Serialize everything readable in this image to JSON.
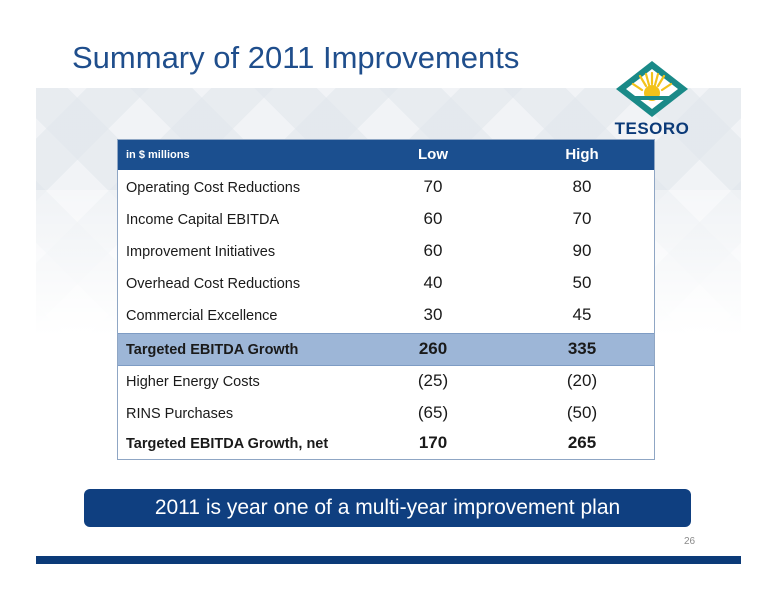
{
  "title": "Summary of 2011 Improvements",
  "logo_text": "TESORO",
  "table": {
    "unit_label": "in $ millions",
    "col_low": "Low",
    "col_high": "High",
    "rows": [
      {
        "label": "Operating Cost Reductions",
        "low": "70",
        "high": "80"
      },
      {
        "label": "Income Capital EBITDA",
        "low": "60",
        "high": "70"
      },
      {
        "label": "Improvement Initiatives",
        "low": "60",
        "high": "90"
      },
      {
        "label": "Overhead Cost Reductions",
        "low": "40",
        "high": "50"
      },
      {
        "label": "Commercial Excellence",
        "low": "30",
        "high": "45"
      },
      {
        "label": "Targeted EBITDA Growth",
        "low": "260",
        "high": "335"
      },
      {
        "label": "Higher Energy Costs",
        "low": "(25)",
        "high": "(20)"
      },
      {
        "label": "RINS Purchases",
        "low": "(65)",
        "high": "(50)"
      },
      {
        "label": "Targeted EBITDA Growth, net",
        "low": "170",
        "high": "265"
      }
    ]
  },
  "banner": "2011 is year one of a multi-year improvement plan",
  "page_number": "26",
  "colors": {
    "brand_blue": "#1b4f8f",
    "highlight": "#9db6d7",
    "logo_green": "#1a8a88",
    "logo_yellow": "#f2c21b"
  }
}
